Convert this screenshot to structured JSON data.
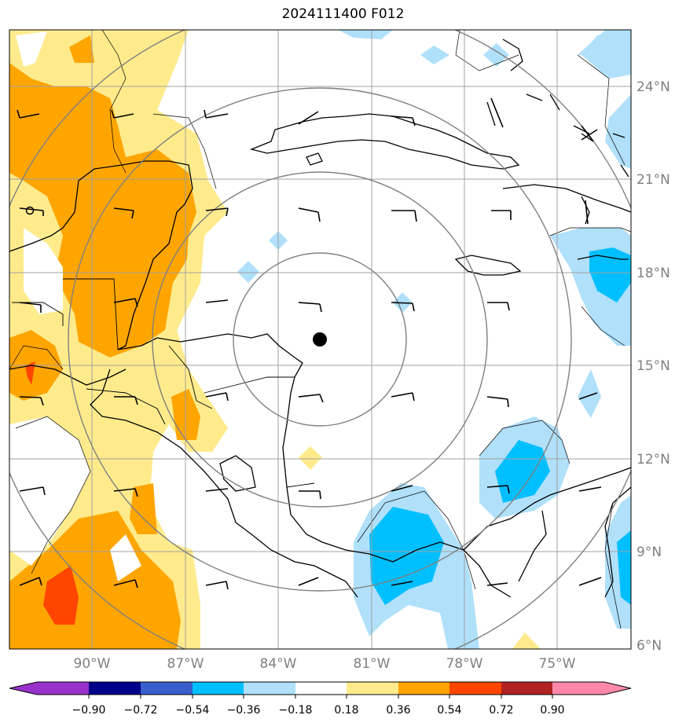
{
  "title": "2024111400 F012",
  "map": {
    "lat_labels": [
      "24°N",
      "21°N",
      "18°N",
      "15°N",
      "12°N",
      "9°N",
      "6°N"
    ],
    "lon_labels": [
      "90°W",
      "87°W",
      "84°W",
      "81°W",
      "78°W",
      "75°W"
    ],
    "colors": {
      "neg_090_up": "#9932cc",
      "neg_090_072": "#00008b",
      "neg_072_054": "#3a5fcd",
      "neg_054_036": "#00bfff",
      "neg_036_018": "#b0e0fa",
      "neutral": "#ffffff",
      "pos_018_036": "#ffeb8c",
      "pos_036_054": "#ffa500",
      "pos_054_072": "#ff4500",
      "pos_072_090": "#b22222",
      "pos_090_up": "#ff88aa"
    },
    "center_marker": "storm-center-dot"
  },
  "colorbar": {
    "tick_labels": [
      "−0.90",
      "−0.72",
      "−0.54",
      "−0.36",
      "−0.18",
      "0.18",
      "0.36",
      "0.54",
      "0.72",
      "0.90"
    ]
  }
}
